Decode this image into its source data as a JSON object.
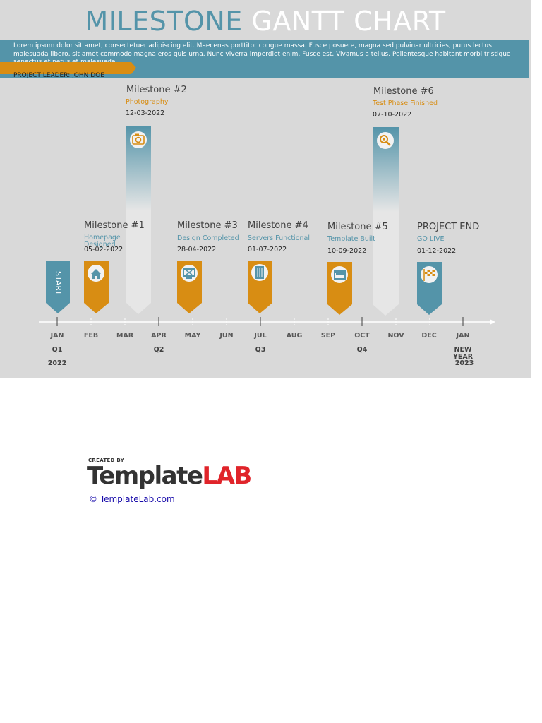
{
  "header": {
    "title_part1": "MILESTONE",
    "title_part2": "GANTT CHART",
    "description": "Lorem ipsum dolor sit amet, consectetuer adipiscing elit. Maecenas porttitor congue massa. Fusce posuere, magna sed pulvinar ultricies, purus lectus malesuada libero, sit amet commodo magna eros quis urna. Nunc viverra imperdiet enim. Fusce est. Vivamus a tellus. Pellentesque habitant morbi tristique senectus et netus et malesuada.",
    "project_leader": "PROJECT LEADER: JOHN DOE"
  },
  "colors": {
    "teal": "#5494a9",
    "orange": "#d88d13",
    "background": "#d9d9d9",
    "title_white": "#ffffff"
  },
  "start": {
    "label": "START"
  },
  "milestones": [
    {
      "title": "Milestone #1",
      "subtitle": "Homepage Designed",
      "date": "05-02-2022",
      "icon": "home-icon",
      "style": "orange-short"
    },
    {
      "title": "Milestone #2",
      "subtitle": "Photography",
      "date": "12-03-2022",
      "icon": "camera-icon",
      "style": "teal-tall"
    },
    {
      "title": "Milestone #3",
      "subtitle": "Design Completed",
      "date": "28-04-2022",
      "icon": "monitor-icon",
      "style": "orange-short"
    },
    {
      "title": "Milestone #4",
      "subtitle": "Servers Functional",
      "date": "01-07-2022",
      "icon": "server-icon",
      "style": "orange-short"
    },
    {
      "title": "Milestone #5",
      "subtitle": "Template Built",
      "date": "10-09-2022",
      "icon": "window-icon",
      "style": "orange-short"
    },
    {
      "title": "Milestone #6",
      "subtitle": "Test Phase Finished",
      "date": "07-10-2022",
      "icon": "search-icon",
      "style": "teal-tall"
    },
    {
      "title": "PROJECT END",
      "subtitle": "GO LIVE",
      "date": "01-12-2022",
      "icon": "finish-flag-icon",
      "style": "teal-short"
    }
  ],
  "timeline": {
    "months": [
      "JAN",
      "FEB",
      "MAR",
      "APR",
      "MAY",
      "JUN",
      "JUL",
      "AUG",
      "SEP",
      "OCT",
      "NOV",
      "DEC",
      "JAN"
    ],
    "quarters": [
      "Q1",
      "Q2",
      "Q3",
      "Q4",
      "NEW YEAR"
    ],
    "years": [
      "2022",
      "2023"
    ]
  },
  "footer": {
    "created_by": "CREATED BY",
    "logo_part1": "Template",
    "logo_part2": "LAB",
    "link": "© TemplateLab.com"
  }
}
